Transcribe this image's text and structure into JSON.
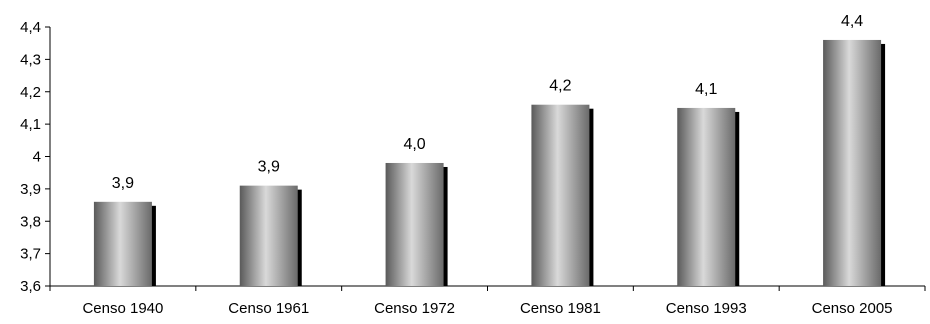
{
  "chart_data": {
    "type": "bar",
    "title": "",
    "xlabel": "",
    "ylabel": "",
    "categories": [
      "Censo 1940",
      "Censo 1961",
      "Censo 1972",
      "Censo 1981",
      "Censo 1993",
      "Censo 2005"
    ],
    "values": [
      3.86,
      3.91,
      3.98,
      4.16,
      4.15,
      4.36
    ],
    "data_labels": [
      "3,9",
      "3,9",
      "4,0",
      "4,2",
      "4,1",
      "4,4"
    ],
    "ylim": [
      3.6,
      4.4
    ],
    "yticks": [
      3.6,
      3.7,
      3.8,
      3.9,
      4.0,
      4.1,
      4.2,
      4.3,
      4.4
    ],
    "ytick_labels": [
      "3,6",
      "3,7",
      "3,8",
      "3,9",
      "4",
      "4,1",
      "4,2",
      "4,3",
      "4,4"
    ],
    "grid": false,
    "legend": "none",
    "bar_color": "#a0a0a0",
    "shadow_color": "#000000"
  }
}
